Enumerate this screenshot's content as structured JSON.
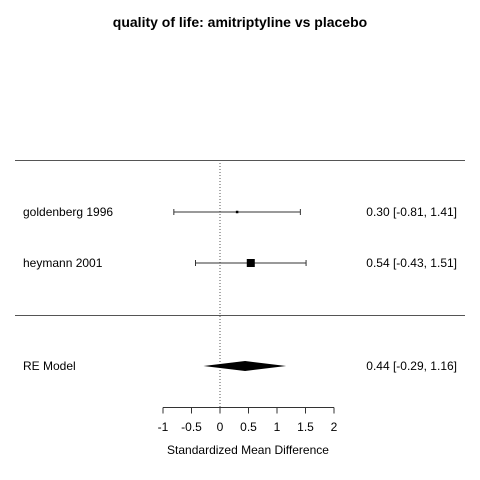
{
  "chart_data": {
    "type": "forest",
    "title": "quality of life: amitriptyline vs placebo",
    "xlabel": "Standardized Mean Difference",
    "xlim": [
      -1,
      2
    ],
    "xticks": [
      -1,
      -0.5,
      0,
      0.5,
      1,
      1.5,
      2
    ],
    "xtick_labels": [
      "-1",
      "-0.5",
      "0",
      "0.5",
      "1",
      "1.5",
      "2"
    ],
    "reference_line": 0,
    "studies": [
      {
        "label": "goldenberg 1996",
        "estimate": 0.3,
        "ci_lower": -0.81,
        "ci_upper": 1.41,
        "text": "0.30 [-0.81, 1.41]",
        "weight": "small"
      },
      {
        "label": "heymann 2001",
        "estimate": 0.54,
        "ci_lower": -0.43,
        "ci_upper": 1.51,
        "text": "0.54 [-0.43, 1.51]",
        "weight": "large"
      }
    ],
    "summary": {
      "label": "RE Model",
      "estimate": 0.44,
      "ci_lower": -0.29,
      "ci_upper": 1.16,
      "text": "0.44 [-0.29, 1.16]"
    }
  }
}
